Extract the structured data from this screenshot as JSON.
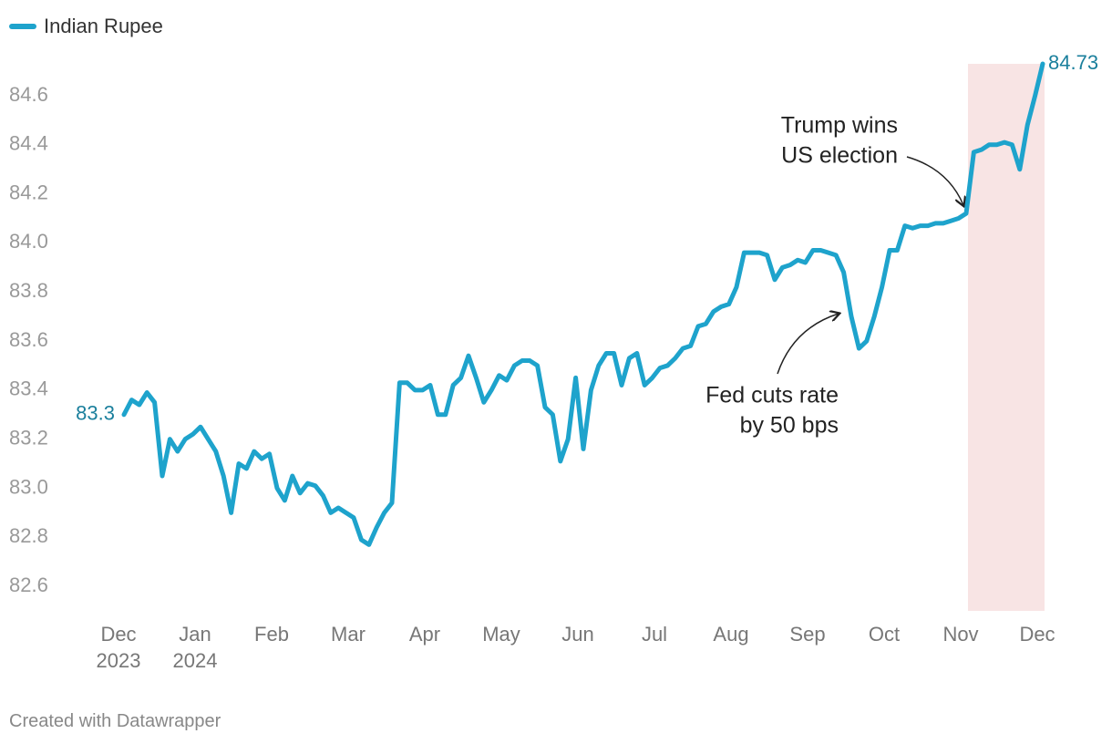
{
  "chart_data": {
    "type": "line",
    "categories": [
      "Dec\n2023",
      null,
      null,
      null,
      null,
      null,
      null,
      null,
      null,
      null,
      "Jan\n2024",
      null,
      null,
      null,
      null,
      null,
      null,
      null,
      null,
      null,
      "Feb",
      null,
      null,
      null,
      null,
      null,
      null,
      null,
      null,
      null,
      "Mar",
      null,
      null,
      null,
      null,
      null,
      null,
      null,
      null,
      null,
      "Apr",
      null,
      null,
      null,
      null,
      null,
      null,
      null,
      null,
      null,
      "May",
      null,
      null,
      null,
      null,
      null,
      null,
      null,
      null,
      null,
      "Jun",
      null,
      null,
      null,
      null,
      null,
      null,
      null,
      null,
      null,
      "Jul",
      null,
      null,
      null,
      null,
      null,
      null,
      null,
      null,
      null,
      "Aug",
      null,
      null,
      null,
      null,
      null,
      null,
      null,
      null,
      null,
      "Sep",
      null,
      null,
      null,
      null,
      null,
      null,
      null,
      null,
      null,
      "Oct",
      null,
      null,
      null,
      null,
      null,
      null,
      null,
      null,
      null,
      "Nov",
      null,
      null,
      null,
      null,
      null,
      null,
      null,
      null,
      null,
      "Dec"
    ],
    "series": [
      {
        "name": "Indian Rupee",
        "color": "#1ea3cc",
        "values": [
          83.3,
          83.36,
          83.34,
          83.39,
          83.35,
          83.05,
          83.2,
          83.15,
          83.2,
          83.22,
          83.25,
          83.2,
          83.15,
          83.05,
          82.9,
          83.1,
          83.08,
          83.15,
          83.12,
          83.14,
          83.0,
          82.95,
          83.05,
          82.98,
          83.02,
          83.01,
          82.97,
          82.9,
          82.92,
          82.9,
          82.88,
          82.79,
          82.77,
          82.84,
          82.9,
          82.94,
          83.43,
          83.43,
          83.4,
          83.4,
          83.42,
          83.3,
          83.3,
          83.42,
          83.45,
          83.54,
          83.45,
          83.35,
          83.4,
          83.46,
          83.44,
          83.5,
          83.52,
          83.52,
          83.5,
          83.33,
          83.3,
          83.11,
          83.2,
          83.45,
          83.16,
          83.4,
          83.5,
          83.55,
          83.55,
          83.42,
          83.53,
          83.55,
          83.42,
          83.45,
          83.49,
          83.5,
          83.53,
          83.57,
          83.58,
          83.66,
          83.67,
          83.72,
          83.74,
          83.75,
          83.82,
          83.96,
          83.96,
          83.96,
          83.95,
          83.85,
          83.9,
          83.91,
          83.93,
          83.92,
          83.97,
          83.97,
          83.96,
          83.95,
          83.88,
          83.7,
          83.57,
          83.6,
          83.7,
          83.82,
          83.97,
          83.97,
          84.07,
          84.06,
          84.07,
          84.07,
          84.08,
          84.08,
          84.09,
          84.1,
          84.12,
          84.37,
          84.38,
          84.4,
          84.4,
          84.41,
          84.4,
          84.3,
          84.48,
          84.6,
          84.73
        ]
      }
    ],
    "ylim": [
      82.5,
      84.73
    ],
    "yticks": [
      82.6,
      82.8,
      {
        "value": 83,
        "label": "83.0"
      },
      83.2,
      83.4,
      83.6,
      83.8,
      {
        "value": 84,
        "label": "84.0"
      },
      84.2,
      84.4,
      84.6
    ],
    "annotations": [
      {
        "text": [
          "Trump wins",
          "US election"
        ]
      },
      {
        "text": [
          "Fed cuts rate",
          "by 50 bps"
        ]
      }
    ],
    "source": "Created with Datawrapper"
  }
}
